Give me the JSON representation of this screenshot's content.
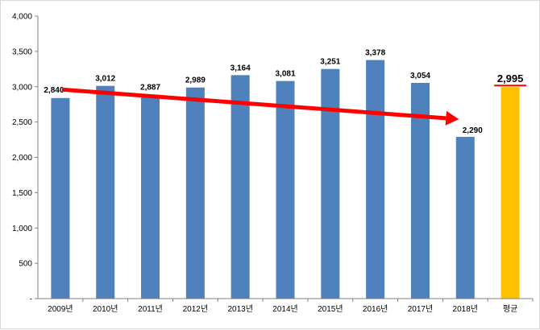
{
  "chart_data": {
    "type": "bar",
    "categories": [
      "2009년",
      "2010년",
      "2011년",
      "2012년",
      "2013년",
      "2014년",
      "2015년",
      "2016년",
      "2017년",
      "2018년",
      "평균"
    ],
    "values": [
      2840,
      3012,
      2887,
      2989,
      3164,
      3081,
      3251,
      3378,
      3054,
      2290,
      2995
    ],
    "data_labels": [
      "2,840",
      "3,012",
      "2,887",
      "2,989",
      "3,164",
      "3,081",
      "3,251",
      "3,378",
      "3,054",
      "2,290",
      "2,995"
    ],
    "y_tick_labels": [
      "-",
      "500",
      "1,000",
      "1,500",
      "2,000",
      "2,500",
      "3,000",
      "3,500",
      "4,000"
    ],
    "ylim": [
      0,
      4000
    ],
    "y_tick_step": 500,
    "grid": false,
    "legend": "none",
    "title": "",
    "xlabel": "",
    "ylabel": "",
    "colors": {
      "bar": "#4f81bd",
      "average_bar": "#ffc000",
      "trend_arrow": "#ff0000",
      "average_underline": "#ff0000",
      "axis": "#808080"
    },
    "trend_arrow": {
      "from_category": "2009년",
      "from_value": 2960,
      "to_category": "2018년",
      "to_value": 2540
    }
  }
}
